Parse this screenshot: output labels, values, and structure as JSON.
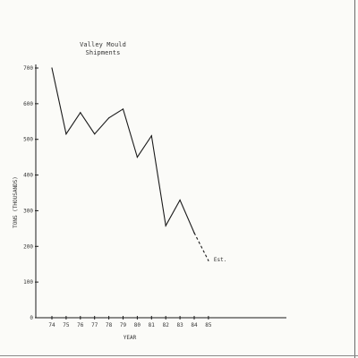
{
  "chart_data": {
    "type": "line",
    "title": "Valley Mould Shipments",
    "title_lines": [
      "Valley Mould",
      "Shipments"
    ],
    "xlabel": "YEAR",
    "ylabel": "TONS (THOUSANDS)",
    "x": [
      "74",
      "75",
      "76",
      "77",
      "78",
      "79",
      "80",
      "81",
      "82",
      "83",
      "84",
      "85"
    ],
    "ylim": [
      0,
      700
    ],
    "yticks": [
      "0",
      "100",
      "200",
      "300",
      "400",
      "500",
      "600",
      "700"
    ],
    "series": [
      {
        "values": [
          700,
          515,
          575,
          515,
          560,
          585,
          450,
          510,
          258,
          330,
          238,
          null
        ],
        "line_style": "solid"
      },
      {
        "values": [
          null,
          null,
          null,
          null,
          null,
          null,
          null,
          null,
          null,
          null,
          238,
          160
        ],
        "line_style": "dashed"
      }
    ],
    "annotations": [
      {
        "text": "Est.",
        "x": "85",
        "y": 160
      }
    ],
    "grid": false,
    "line_color": "#1a1a1a"
  }
}
